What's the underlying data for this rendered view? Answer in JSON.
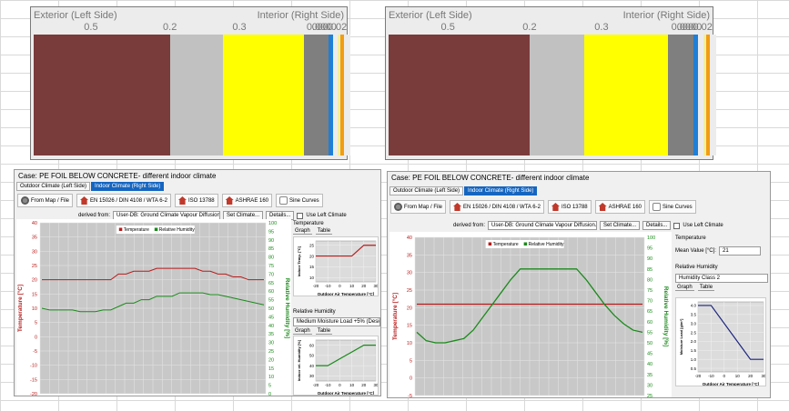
{
  "layers": [
    {
      "exterior": "Exterior (Left Side)",
      "interior": "Interior (Right Side)",
      "thickness_labels": [
        "0.5",
        "0.2",
        "0.3",
        "0.0",
        "0.0",
        "0.0",
        "0.0",
        "0.02"
      ],
      "materials": [
        {
          "color": "#7a3b3b",
          "fraction": 0.44
        },
        {
          "color": "#c1c1c1",
          "fraction": 0.17
        },
        {
          "color": "#ffff00",
          "fraction": 0.26
        },
        {
          "color": "#7f7f7f",
          "fraction": 0.08
        },
        {
          "color": "#1f7fd6",
          "fraction": 0.014
        },
        {
          "color": "#ececec",
          "fraction": 0.016
        },
        {
          "color": "#f0f0a0",
          "fraction": 0.008
        },
        {
          "color": "#f39c12",
          "fraction": 0.012
        },
        {
          "color": "#ececec",
          "fraction": 0.02
        }
      ]
    },
    {
      "exterior": "Exterior (Left Side)",
      "interior": "Interior (Right Side)",
      "thickness_labels": [
        "0.5",
        "0.2",
        "0.3",
        "0.0",
        "0.0",
        "0.0",
        "0.0",
        "0.02"
      ],
      "materials": [
        {
          "color": "#7a3b3b",
          "fraction": 0.44
        },
        {
          "color": "#c1c1c1",
          "fraction": 0.17
        },
        {
          "color": "#ffff00",
          "fraction": 0.26
        },
        {
          "color": "#7f7f7f",
          "fraction": 0.08
        },
        {
          "color": "#1f7fd6",
          "fraction": 0.014
        },
        {
          "color": "#ececec",
          "fraction": 0.016
        },
        {
          "color": "#f0f0a0",
          "fraction": 0.008
        },
        {
          "color": "#f39c12",
          "fraction": 0.012
        },
        {
          "color": "#ececec",
          "fraction": 0.02
        }
      ]
    }
  ],
  "left_window": {
    "case_title": "Case:  PE FOIL BELOW CONCRETE- different indoor climate",
    "tabs": [
      "Outdoor Climate (Left Side)",
      "Indoor Climate (Right Side)"
    ],
    "toolbar": [
      {
        "icon": "globe-icon",
        "label": "From Map / File"
      },
      {
        "icon": "house-icon",
        "label": "EN 15026 / DIN 4108 / WTA 6-2"
      },
      {
        "icon": "house-icon",
        "label": "ISO 13788"
      },
      {
        "icon": "house-icon",
        "label": "ASHRAE 160"
      },
      {
        "icon": "sine-icon",
        "label": "Sine Curves"
      }
    ],
    "derived_label": "derived from:",
    "derived_value": "User-DB: Ground Climate Vapour Diffusion.wac",
    "set_climate": "Set Climate...",
    "details": "Details...",
    "use_left": "Use Left Climate",
    "legend_temp": "Temperature",
    "legend_rh": "Relative Humidity",
    "y_left_label": "Temperature [°C]",
    "y_right_label": "Relative Humidity [%]",
    "y_left_ticks": [
      "40",
      "35",
      "30",
      "25",
      "20",
      "15",
      "10",
      "5",
      "0",
      "-5",
      "-10",
      "-15",
      "-20"
    ],
    "y_right_ticks": [
      "100",
      "95",
      "90",
      "85",
      "80",
      "75",
      "70",
      "65",
      "60",
      "55",
      "50",
      "45",
      "40",
      "35",
      "30",
      "25",
      "20",
      "15",
      "10",
      "5",
      "0"
    ],
    "temperature_header": "Temperature",
    "graph_tab": "Graph",
    "table_tab": "Table",
    "temp_mini_ylabel": "Indoor Temp. [°C]",
    "temp_mini_yticks": [
      "25",
      "20",
      "15",
      "10"
    ],
    "mini_xticks": [
      "-20",
      "-10",
      "0",
      "10",
      "20",
      "30"
    ],
    "mini_xlabel": "Outdoor Air Temperature [°C]",
    "rh_header": "Relative Humidity",
    "rh_select": "Medium Moisture Load +5% (Design) (...",
    "rh_mini_ylabel": "Indoor rel. Humidity [%]",
    "rh_mini_yticks": [
      "60",
      "50",
      "40",
      "30"
    ],
    "colors": {
      "temp": "#b71c1c",
      "rh": "#1b8a1b",
      "plot_bg": "#c8c8c8"
    }
  },
  "right_window": {
    "case_title": "Case:  PE FOIL BELOW CONCRETE- different indoor climate",
    "tabs": [
      "Outdoor Climate (Left Side)",
      "Indoor Climate (Right Side)"
    ],
    "toolbar": [
      {
        "icon": "globe-icon",
        "label": "From Map / File"
      },
      {
        "icon": "house-icon",
        "label": "EN 15026 / DIN 4108 / WTA 6-2"
      },
      {
        "icon": "house-icon",
        "label": "ISO 13788"
      },
      {
        "icon": "house-icon",
        "label": "ASHRAE 160"
      },
      {
        "icon": "sine-icon",
        "label": "Sine Curves"
      }
    ],
    "derived_label": "derived from:",
    "derived_value": "User-DB: Ground Climate Vapour Diffusion.wac",
    "set_climate": "Set Climate...",
    "details": "Details...",
    "use_left": "Use Left Climate",
    "legend_temp": "Temperature",
    "legend_rh": "Relative Humidity",
    "y_left_label": "Temperature [°C]",
    "y_right_label": "Relative Humidity [%]",
    "y_left_ticks": [
      "40",
      "35",
      "30",
      "25",
      "20",
      "15",
      "10",
      "5",
      "0",
      "-5"
    ],
    "y_right_ticks": [
      "100",
      "95",
      "90",
      "85",
      "80",
      "75",
      "70",
      "65",
      "60",
      "55",
      "50",
      "45",
      "40",
      "35",
      "30",
      "25"
    ],
    "temperature_header": "Temperature",
    "mean_value_label": "Mean Value [°C]:",
    "mean_value": "21",
    "rh_header": "Relative Humidity",
    "rh_select": "Humidity Class 2",
    "graph_tab": "Graph",
    "table_tab": "Table",
    "ml_mini_ylabel": "Moisture Load [g/m³]",
    "ml_mini_yticks": [
      "4.0",
      "3.5",
      "3.0",
      "2.5",
      "2.0",
      "1.5",
      "1.0",
      "0.5"
    ],
    "mini_xticks": [
      "-20",
      "-10",
      "0",
      "10",
      "20",
      "30"
    ],
    "mini_xlabel": "Outdoor Air Temperature [°C]",
    "colors": {
      "temp": "#b71c1c",
      "rh": "#1b8a1b",
      "plot_bg": "#c8c8c8",
      "ml": "#1a237e"
    }
  },
  "chart_data": [
    {
      "type": "line",
      "title": "",
      "xlabel": "",
      "ylabel": "Temperature [°C]",
      "y2label": "Relative Humidity [%]",
      "ylim": [
        -20,
        40
      ],
      "y2lim": [
        0,
        100
      ],
      "x": [
        1,
        2,
        3,
        4,
        5,
        6,
        7,
        8,
        9,
        10,
        11,
        12,
        13,
        14,
        15,
        16,
        17,
        18,
        19,
        20,
        21,
        22,
        23,
        24,
        25,
        26,
        27,
        28,
        29,
        30
      ],
      "series": [
        {
          "name": "Temperature",
          "axis": "left",
          "values": [
            20,
            20,
            20,
            20,
            20,
            20,
            20,
            20,
            20,
            20,
            22,
            22,
            23,
            23,
            23,
            24,
            24,
            24,
            24,
            24,
            24,
            23,
            23,
            22,
            22,
            21,
            21,
            20,
            20,
            20
          ]
        },
        {
          "name": "Relative Humidity",
          "axis": "right",
          "values": [
            50,
            49,
            49,
            49,
            49,
            48,
            48,
            48,
            49,
            49,
            51,
            53,
            53,
            55,
            55,
            57,
            57,
            57,
            59,
            59,
            59,
            59,
            58,
            58,
            57,
            56,
            55,
            54,
            53,
            52
          ]
        }
      ]
    },
    {
      "type": "line",
      "title": "",
      "xlabel": "",
      "ylabel": "Temperature [°C]",
      "y2label": "Relative Humidity [%]",
      "ylim": [
        -5,
        40
      ],
      "y2lim": [
        25,
        100
      ],
      "x": [
        1,
        2,
        3,
        4,
        5,
        6,
        7,
        8,
        9,
        10,
        11,
        12,
        13,
        14,
        15,
        16,
        17,
        18,
        19,
        20,
        21,
        22,
        23,
        24,
        25
      ],
      "series": [
        {
          "name": "Temperature",
          "axis": "left",
          "values": [
            21,
            21,
            21,
            21,
            21,
            21,
            21,
            21,
            21,
            21,
            21,
            21,
            21,
            21,
            21,
            21,
            21,
            21,
            21,
            21,
            21,
            21,
            21,
            21,
            21
          ]
        },
        {
          "name": "Relative Humidity",
          "axis": "right",
          "values": [
            55,
            51,
            50,
            50,
            51,
            52,
            56,
            62,
            68,
            74,
            80,
            85,
            85,
            85,
            85,
            85,
            85,
            85,
            80,
            74,
            68,
            63,
            59,
            56,
            55
          ]
        }
      ]
    }
  ]
}
